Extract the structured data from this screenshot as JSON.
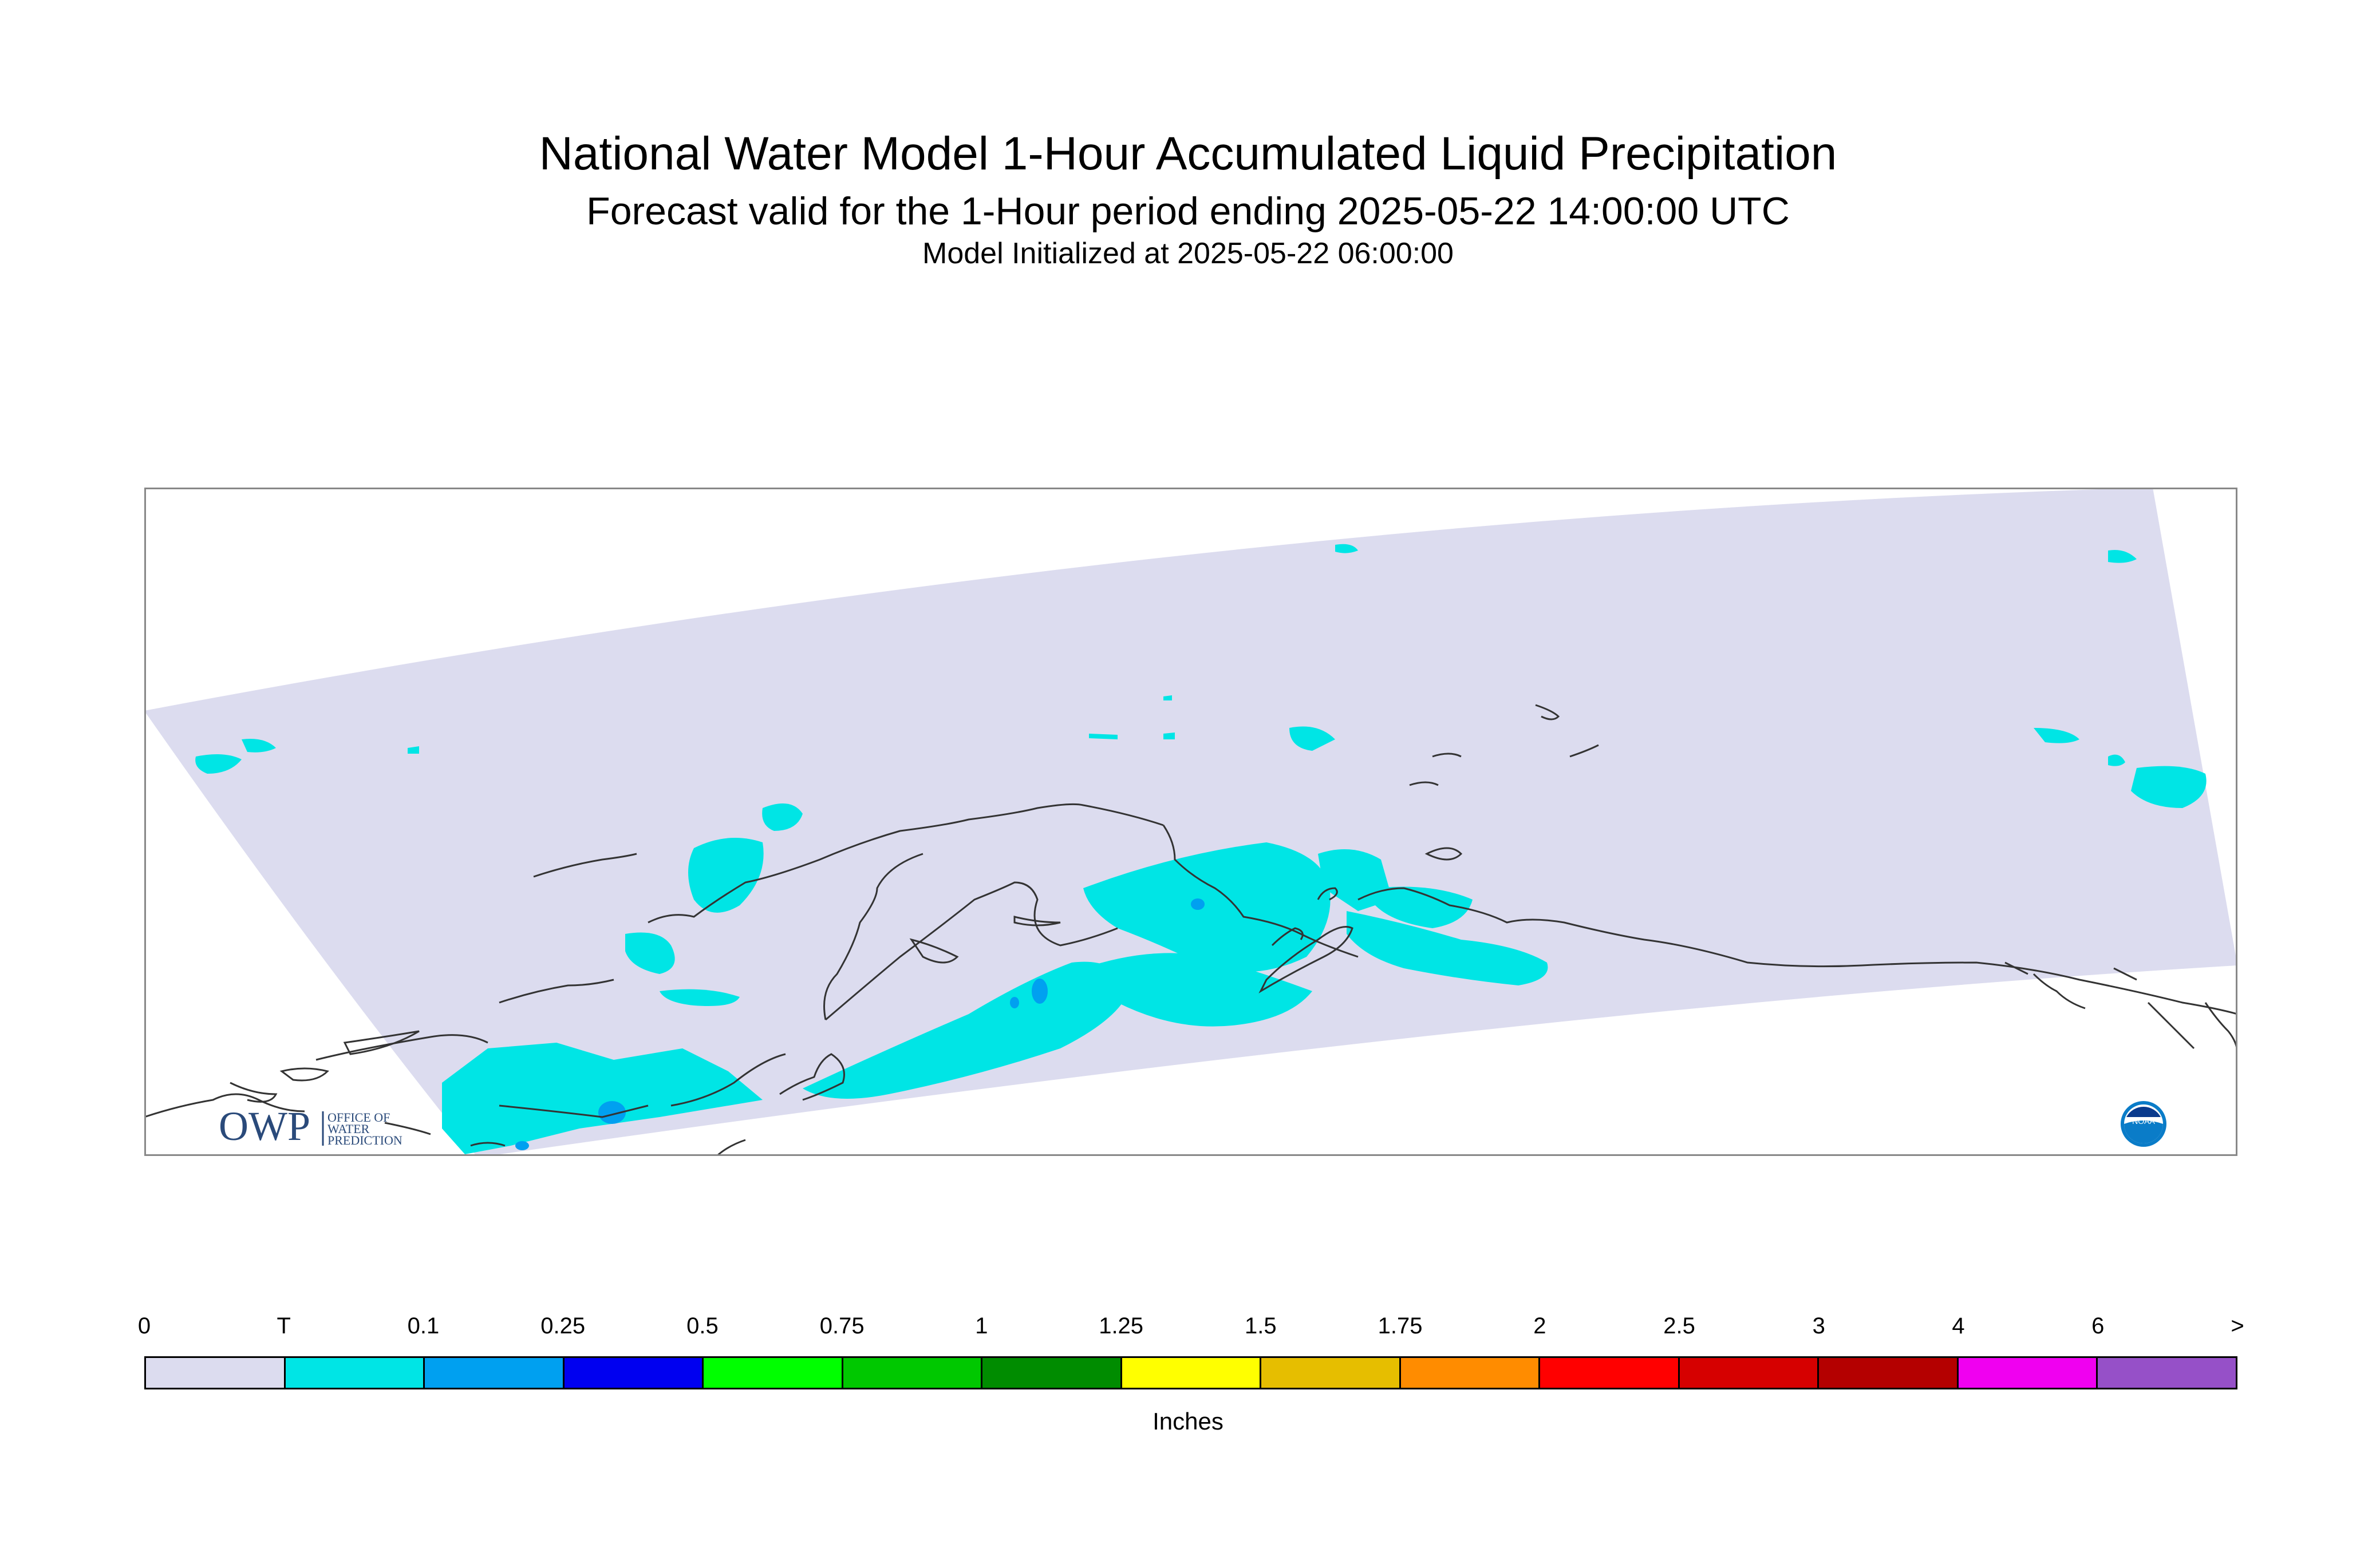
{
  "title": "National Water Model 1-Hour Accumulated Liquid Precipitation",
  "subtitle": "Forecast valid for the 1-Hour period ending 2025-05-22 14:00:00 UTC",
  "init_line": "Model Initialized at 2025-05-22 06:00:00",
  "colors": {
    "no_precip": "#dcdcef",
    "trace": "#00e5e5",
    "light_blue": "#00a0f0",
    "coast": "#333333",
    "frame": "#888888"
  },
  "logos": {
    "owp_text": "OWP",
    "owp_sub": [
      "OFFICE OF",
      "WATER",
      "PREDICTION"
    ],
    "noaa_text": "NOAA"
  },
  "colorbar": {
    "labels": [
      "0",
      "T",
      "0.1",
      "0.25",
      "0.5",
      "0.75",
      "1",
      "1.25",
      "1.5",
      "1.75",
      "2",
      "2.5",
      "3",
      "4",
      "6",
      ">"
    ],
    "colors": [
      "#dcdcef",
      "#00e5e5",
      "#00a0f0",
      "#0000f0",
      "#00ff00",
      "#00c800",
      "#008c00",
      "#ffff00",
      "#e6be00",
      "#ff8c00",
      "#ff0000",
      "#d60000",
      "#b40000",
      "#f000f0",
      "#9650c8"
    ],
    "units": "Inches"
  }
}
